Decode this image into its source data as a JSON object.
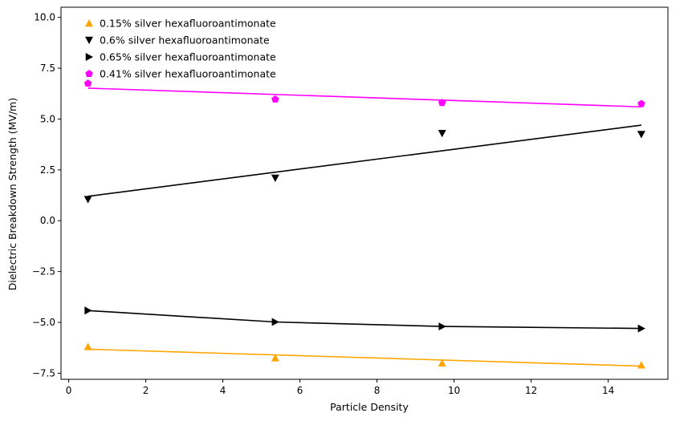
{
  "chart_data": {
    "type": "scatter",
    "title": "",
    "xlabel": "Particle Density",
    "ylabel": "Dielectric Breakdown Strength (MV/m)",
    "xlim": [
      -0.2,
      15.55
    ],
    "ylim": [
      -7.8,
      10.5
    ],
    "xticks": [
      0,
      2,
      4,
      6,
      8,
      10,
      12,
      14
    ],
    "yticks": [
      -7.5,
      -5.0,
      -2.5,
      0.0,
      2.5,
      5.0,
      7.5,
      10.0
    ],
    "xtick_labels": [
      "0",
      "2",
      "4",
      "6",
      "8",
      "10",
      "12",
      "14"
    ],
    "ytick_labels": [
      "−7.5",
      "−5.0",
      "−2.5",
      "0.0",
      "2.5",
      "5.0",
      "7.5",
      "10.0"
    ],
    "grid": false,
    "legend_position": "top-left",
    "series": [
      {
        "name": "0.15% silver hexafluoroantimonate",
        "marker": "triangle-up",
        "color": "#ffa500",
        "x": [
          0.5,
          5.36,
          9.69,
          14.86
        ],
        "y": [
          -6.2,
          -6.75,
          -7.0,
          -7.1
        ],
        "fit": {
          "x": [
            0.5,
            14.86
          ],
          "y": [
            -6.32,
            -7.15
          ]
        }
      },
      {
        "name": "0.6% silver hexafluoroantimonate",
        "marker": "triangle-down",
        "color": "#000000",
        "x": [
          0.5,
          5.36,
          9.69,
          14.86
        ],
        "y": [
          1.05,
          2.1,
          4.3,
          4.25
        ],
        "fit": {
          "x": [
            0.5,
            14.86
          ],
          "y": [
            1.2,
            4.7
          ]
        }
      },
      {
        "name": "0.65% silver hexafluoroantimonate",
        "marker": "triangle-right",
        "color": "#000000",
        "x": [
          0.5,
          5.36,
          9.69,
          14.86
        ],
        "y": [
          -4.42,
          -4.98,
          -5.2,
          -5.3
        ],
        "fit": {
          "x": [
            0.5,
            5.36,
            9.69,
            14.86
          ],
          "y": [
            -4.42,
            -4.98,
            -5.2,
            -5.3
          ]
        }
      },
      {
        "name": "0.41% silver hexafluoroantimonate",
        "marker": "pentagon",
        "color": "#ff00ff",
        "x": [
          0.5,
          5.36,
          9.69,
          14.86
        ],
        "y": [
          6.75,
          5.97,
          5.8,
          5.75
        ],
        "fit": {
          "x": [
            0.5,
            14.86
          ],
          "y": [
            6.52,
            5.6
          ]
        }
      }
    ]
  }
}
